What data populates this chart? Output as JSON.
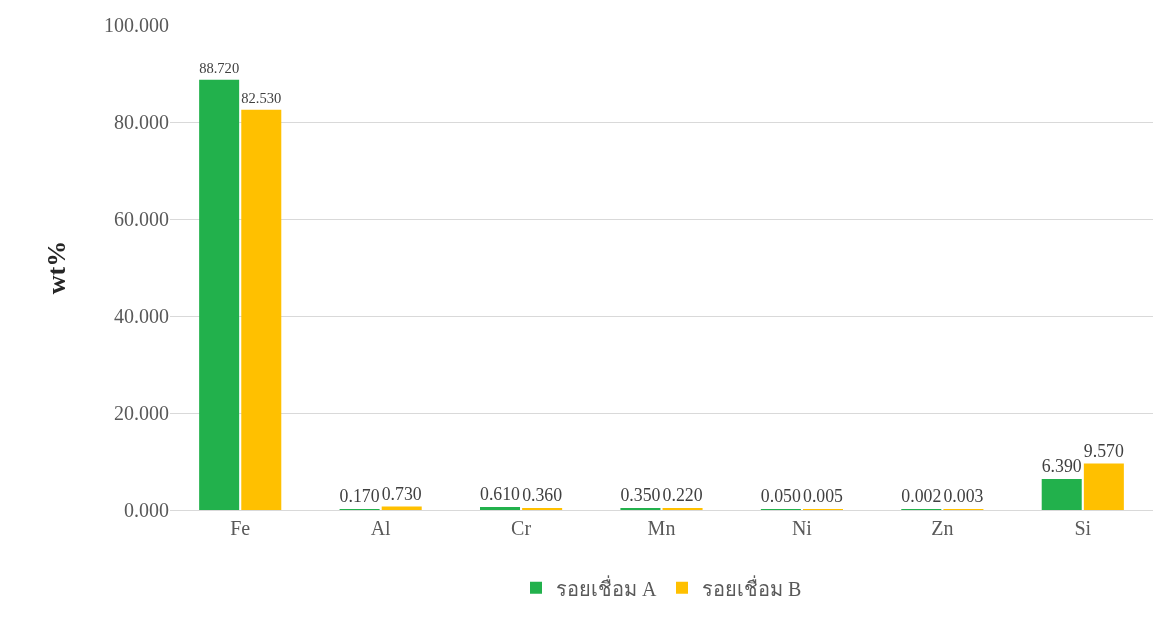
{
  "chart_data": {
    "type": "bar",
    "ylabel": "wt%",
    "categories": [
      "Fe",
      "Al",
      "Cr",
      "Mn",
      "Ni",
      "Zn",
      "Si"
    ],
    "series": [
      {
        "name": "รอยเชื่อม A",
        "color": "#22b14c",
        "values": [
          88.72,
          0.17,
          0.61,
          0.35,
          0.05,
          0.002,
          6.39
        ],
        "value_labels": [
          "88.720",
          "0.170",
          "0.610",
          "0.350",
          "0.050",
          "0.002",
          "6.390"
        ]
      },
      {
        "name": "รอยเชื่อม B",
        "color": "#ffc000",
        "values": [
          82.53,
          0.73,
          0.36,
          0.22,
          0.005,
          0.003,
          9.57
        ],
        "value_labels": [
          "82.530",
          "0.730",
          "0.360",
          "0.220",
          "0.005",
          "0.003",
          "9.570"
        ]
      }
    ],
    "ylim": [
      0,
      100
    ],
    "yticks": [
      {
        "value": 0,
        "label": "0.000"
      },
      {
        "value": 20,
        "label": "20.000"
      },
      {
        "value": 40,
        "label": "40.000"
      },
      {
        "value": 60,
        "label": "60.000"
      },
      {
        "value": 80,
        "label": "80.000"
      },
      {
        "value": 100,
        "label": "100.000"
      }
    ],
    "grid": "y",
    "legend": "bottom"
  }
}
